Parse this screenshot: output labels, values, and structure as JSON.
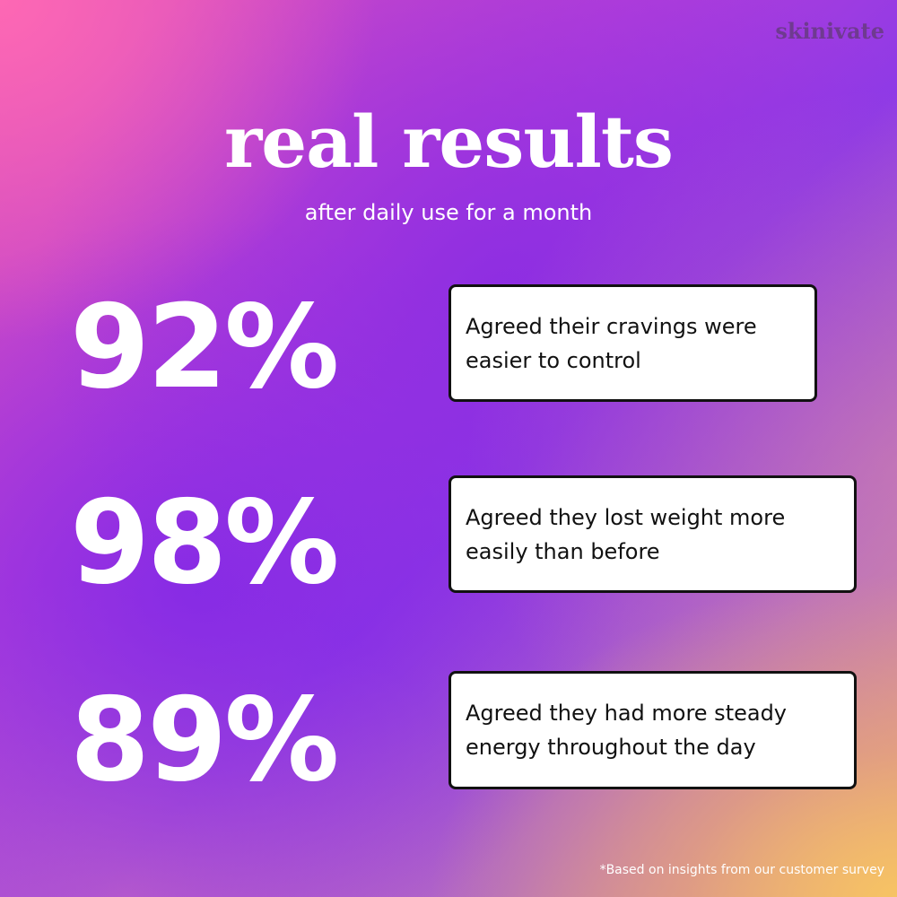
{
  "brand": "skinivate",
  "title": "real results",
  "subtitle": "after daily use for a month",
  "stats": [
    {
      "value": "92%",
      "text": "Agreed their cravings were easier to control"
    },
    {
      "value": "98%",
      "text": "Agreed they lost weight more easily than before"
    },
    {
      "value": "89%",
      "text": "Agreed they had more steady energy throughout the day"
    }
  ],
  "footnote": "*Based on insights from our customer survey",
  "colors": {
    "text": "#ffffff",
    "card_background": "#ffffff",
    "card_border": "#111111",
    "brand": "#6f3a90",
    "gradient_pink": "#ff69b4",
    "gradient_purple": "#8a2be2",
    "gradient_gold": "#f7c463"
  }
}
